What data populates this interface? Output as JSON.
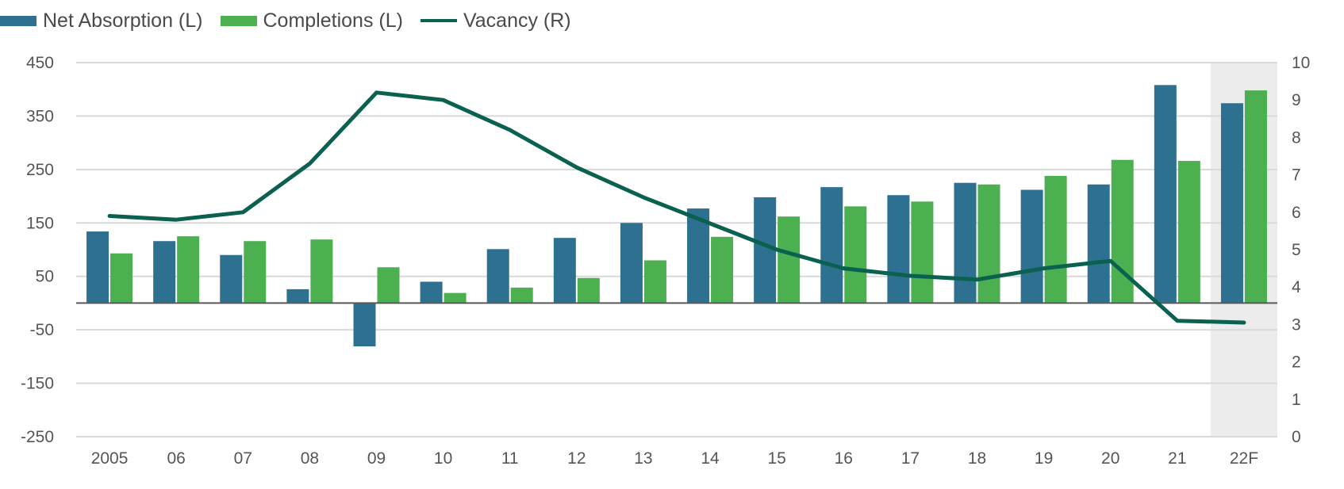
{
  "legend": {
    "absorption_label": "Net Absorption (L)",
    "completions_label": "Completions (L)",
    "vacancy_label": "Vacancy (R)"
  },
  "colors": {
    "absorption": "#2E7090",
    "completions": "#4CAF50",
    "vacancy": "#0B6150",
    "grid": "#d9d9d9",
    "zero_line": "#595959",
    "forecast_shade": "#ececec"
  },
  "chart_data": {
    "type": "bar",
    "categories": [
      "2005",
      "06",
      "07",
      "08",
      "09",
      "10",
      "11",
      "12",
      "13",
      "14",
      "15",
      "16",
      "17",
      "18",
      "19",
      "20",
      "21",
      "22F"
    ],
    "series": [
      {
        "name": "Net Absorption (L)",
        "axis": "left",
        "type": "bar",
        "values": [
          134,
          116,
          90,
          26,
          -81,
          40,
          101,
          122,
          150,
          177,
          198,
          217,
          202,
          225,
          212,
          222,
          408,
          374
        ]
      },
      {
        "name": "Completions (L)",
        "axis": "left",
        "type": "bar",
        "values": [
          93,
          125,
          116,
          119,
          67,
          19,
          29,
          47,
          80,
          124,
          162,
          181,
          190,
          222,
          238,
          268,
          266,
          398
        ]
      },
      {
        "name": "Vacancy (R)",
        "axis": "right",
        "type": "line",
        "values": [
          5.9,
          5.8,
          6.0,
          7.3,
          9.2,
          9.0,
          8.2,
          7.2,
          6.4,
          5.7,
          5.0,
          4.5,
          4.3,
          4.2,
          4.5,
          4.7,
          3.1,
          3.05
        ]
      }
    ],
    "y_left": {
      "range": [
        -250,
        450
      ],
      "ticks": [
        450,
        350,
        250,
        150,
        50,
        -50,
        -150,
        -250
      ]
    },
    "y_right": {
      "range": [
        0,
        10
      ],
      "ticks": [
        10,
        9,
        8,
        7,
        6,
        5,
        4,
        3,
        2,
        1,
        0
      ]
    },
    "forecast_category": "22F",
    "grid": true,
    "legend_position": "top-left"
  }
}
